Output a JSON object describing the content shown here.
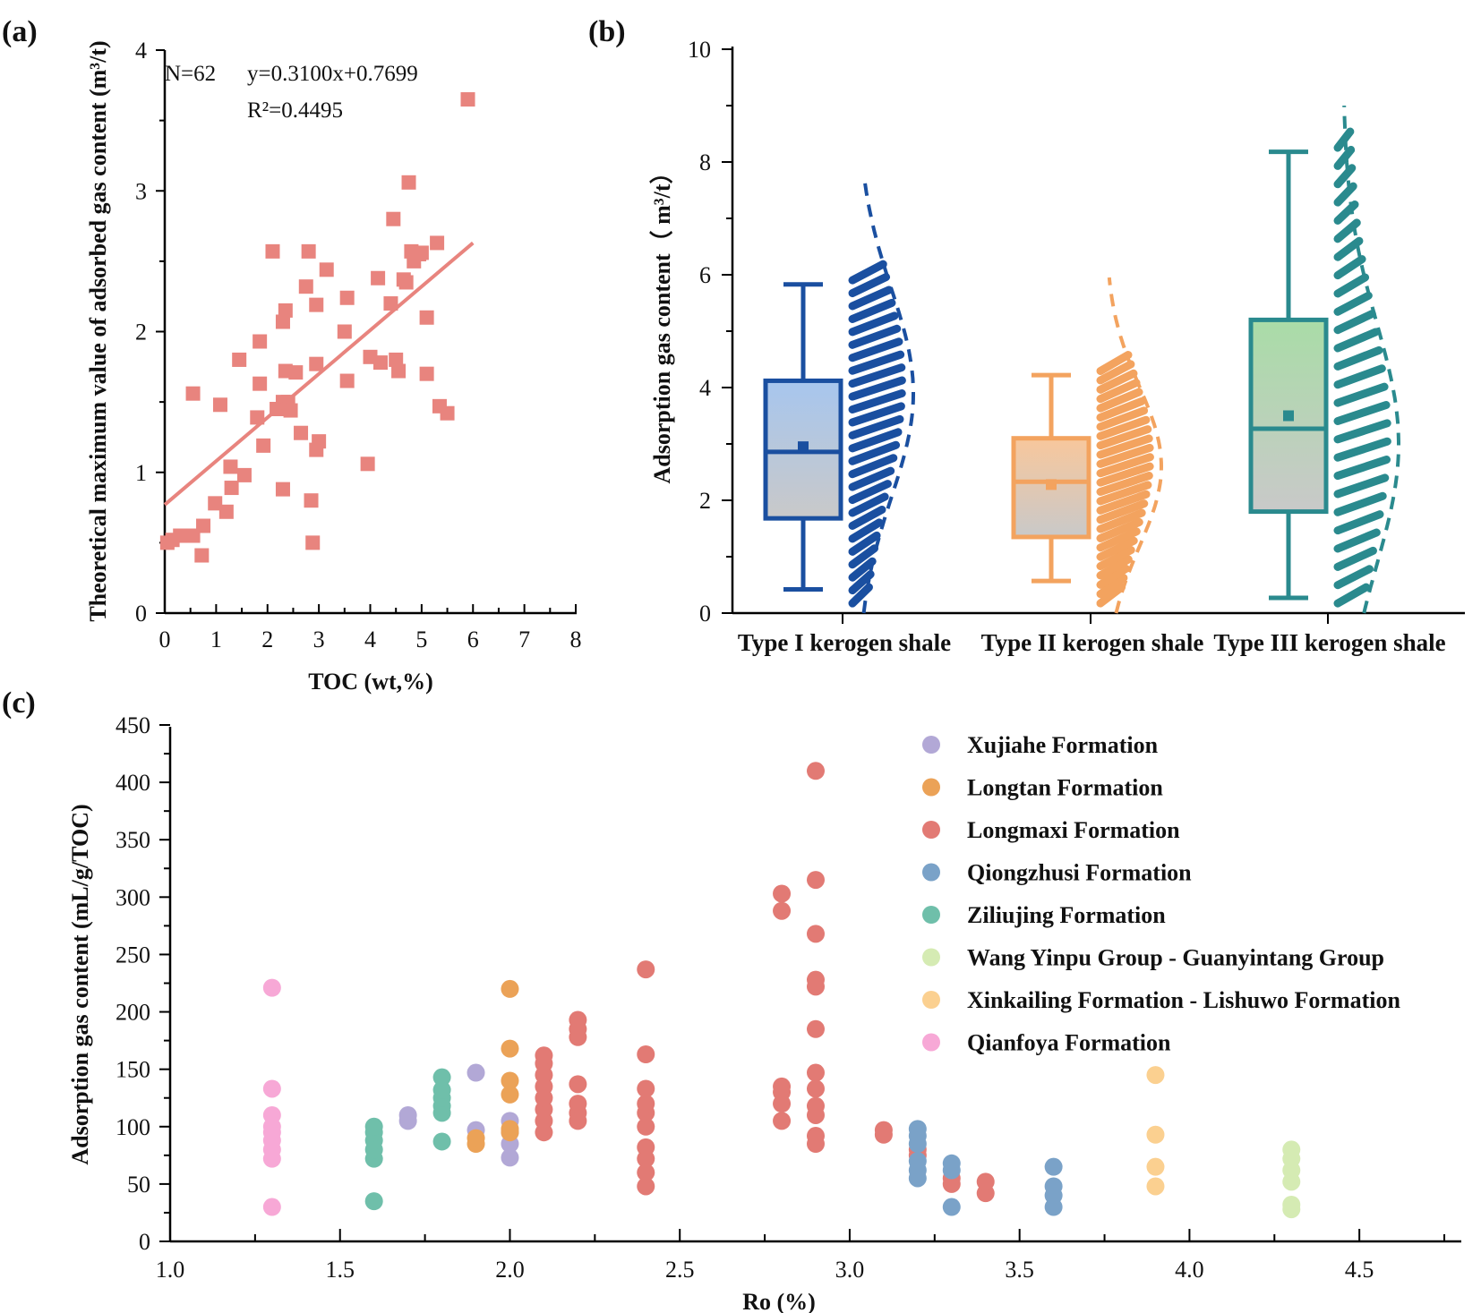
{
  "panels": {
    "a": {
      "label": "(a)"
    },
    "b": {
      "label": "(b)"
    },
    "c": {
      "label": "(c)"
    }
  },
  "chart_data": [
    {
      "id": "a",
      "type": "scatter",
      "xlabel": "TOC (wt,%)",
      "ylabel": "Theoretical maximum value of adsorbed gas content (m³/t)",
      "xlim": [
        0,
        8
      ],
      "ylim": [
        0,
        4
      ],
      "xticks": [
        "0",
        "1",
        "2",
        "3",
        "4",
        "5",
        "6",
        "7",
        "8"
      ],
      "yticks": [
        "0",
        "1",
        "2",
        "3",
        "4"
      ],
      "annotation": {
        "n": "N=62",
        "equation": "y=0.3100x+0.7699",
        "r2": "R²=0.4495"
      },
      "fit": {
        "slope": 0.31,
        "intercept": 0.7699,
        "x_range": [
          0,
          6
        ]
      },
      "color": "#e8847e",
      "points": [
        [
          0.05,
          0.5
        ],
        [
          0.15,
          0.52
        ],
        [
          0.3,
          0.55
        ],
        [
          0.55,
          0.55
        ],
        [
          0.75,
          0.62
        ],
        [
          0.72,
          0.41
        ],
        [
          0.98,
          0.78
        ],
        [
          1.2,
          0.72
        ],
        [
          1.28,
          1.04
        ],
        [
          1.3,
          0.89
        ],
        [
          1.55,
          0.98
        ],
        [
          0.55,
          1.56
        ],
        [
          1.08,
          1.48
        ],
        [
          1.45,
          1.8
        ],
        [
          1.85,
          1.63
        ],
        [
          1.85,
          1.93
        ],
        [
          1.8,
          1.39
        ],
        [
          1.92,
          1.19
        ],
        [
          2.18,
          1.45
        ],
        [
          2.3,
          1.5
        ],
        [
          2.4,
          1.5
        ],
        [
          2.45,
          1.44
        ],
        [
          2.35,
          1.72
        ],
        [
          2.55,
          1.71
        ],
        [
          2.1,
          2.57
        ],
        [
          2.3,
          2.07
        ],
        [
          2.35,
          2.15
        ],
        [
          2.65,
          1.28
        ],
        [
          2.3,
          0.88
        ],
        [
          2.75,
          2.32
        ],
        [
          2.8,
          2.57
        ],
        [
          2.85,
          0.8
        ],
        [
          2.88,
          0.5
        ],
        [
          2.95,
          1.16
        ],
        [
          2.95,
          2.19
        ],
        [
          2.95,
          1.77
        ],
        [
          3.0,
          1.22
        ],
        [
          3.15,
          2.44
        ],
        [
          3.5,
          2.0
        ],
        [
          3.55,
          2.24
        ],
        [
          3.55,
          1.65
        ],
        [
          3.95,
          1.06
        ],
        [
          4.0,
          1.82
        ],
        [
          4.15,
          2.38
        ],
        [
          4.2,
          1.78
        ],
        [
          4.4,
          2.2
        ],
        [
          4.45,
          2.8
        ],
        [
          4.5,
          1.8
        ],
        [
          4.55,
          1.72
        ],
        [
          4.65,
          2.37
        ],
        [
          4.75,
          3.06
        ],
        [
          4.8,
          2.57
        ],
        [
          4.85,
          2.5
        ],
        [
          4.95,
          2.55
        ],
        [
          5.0,
          2.56
        ],
        [
          5.1,
          1.7
        ],
        [
          5.1,
          2.1
        ],
        [
          5.3,
          2.63
        ],
        [
          5.35,
          1.47
        ],
        [
          5.5,
          1.42
        ],
        [
          5.9,
          3.65
        ],
        [
          4.7,
          2.35
        ]
      ]
    },
    {
      "id": "b",
      "type": "box",
      "ylabel": "Adsorption gas content（ m³/t）",
      "ylim": [
        0,
        10
      ],
      "yticks": [
        "0",
        "2",
        "4",
        "6",
        "8",
        "10"
      ],
      "categories": [
        "Type I kerogen shale",
        "Type II kerogen shale",
        "Type III kerogen shale"
      ],
      "series": [
        {
          "name": "Type I kerogen shale",
          "color": "#1a4fa0",
          "fill_top": "#a7c6ee",
          "min": 0.42,
          "q1": 1.68,
          "median": 2.86,
          "q3": 4.12,
          "max": 5.83,
          "mean": 2.95,
          "dist_range": [
            0,
            7.75
          ],
          "dist_peak": 3.9
        },
        {
          "name": "Type II kerogen shale",
          "color": "#f3a35f",
          "fill_top": "#f8c79c",
          "min": 0.57,
          "q1": 1.35,
          "median": 2.33,
          "q3": 3.1,
          "max": 4.22,
          "mean": 2.28,
          "dist_range": [
            0,
            5.95
          ],
          "dist_peak": 2.6
        },
        {
          "name": "Type III kerogen shale",
          "color": "#2a8a8e",
          "fill_top": "#a9dca7",
          "min": 0.27,
          "q1": 1.8,
          "median": 3.27,
          "q3": 5.2,
          "max": 8.18,
          "mean": 3.5,
          "dist_range": [
            0,
            9.0
          ],
          "dist_peak": 3.0
        }
      ]
    },
    {
      "id": "c",
      "type": "scatter",
      "xlabel": "Ro (%)",
      "ylabel": "Adsorption gas content (mL/g/TOC)",
      "xlim": [
        1.0,
        4.8
      ],
      "ylim": [
        0,
        450
      ],
      "xticks": [
        "1.0",
        "1.5",
        "2.0",
        "2.5",
        "3.0",
        "3.5",
        "4.0",
        "4.5"
      ],
      "yticks": [
        "0",
        "50",
        "100",
        "150",
        "200",
        "250",
        "300",
        "350",
        "400",
        "450"
      ],
      "series": [
        {
          "name": "Xujiahe Formation",
          "color": "#b2a8d6",
          "points": [
            [
              1.7,
              105
            ],
            [
              1.7,
              110
            ],
            [
              1.9,
              97
            ],
            [
              1.9,
              147
            ],
            [
              2.0,
              73
            ],
            [
              2.0,
              85
            ],
            [
              2.0,
              95
            ],
            [
              2.0,
              105
            ]
          ]
        },
        {
          "name": "Longtan Formation",
          "color": "#eba257",
          "points": [
            [
              1.9,
              85
            ],
            [
              1.9,
              90
            ],
            [
              2.0,
              95
            ],
            [
              2.0,
              98
            ],
            [
              2.0,
              128
            ],
            [
              2.0,
              140
            ],
            [
              2.0,
              168
            ],
            [
              2.0,
              220
            ]
          ]
        },
        {
          "name": "Longmaxi Formation",
          "color": "#e27a74",
          "points": [
            [
              2.1,
              95
            ],
            [
              2.1,
              105
            ],
            [
              2.1,
              115
            ],
            [
              2.1,
              125
            ],
            [
              2.1,
              135
            ],
            [
              2.1,
              145
            ],
            [
              2.1,
              155
            ],
            [
              2.1,
              162
            ],
            [
              2.2,
              105
            ],
            [
              2.2,
              112
            ],
            [
              2.2,
              120
            ],
            [
              2.2,
              137
            ],
            [
              2.2,
              178
            ],
            [
              2.2,
              185
            ],
            [
              2.2,
              193
            ],
            [
              2.4,
              48
            ],
            [
              2.4,
              60
            ],
            [
              2.4,
              72
            ],
            [
              2.4,
              82
            ],
            [
              2.4,
              100
            ],
            [
              2.4,
              112
            ],
            [
              2.4,
              120
            ],
            [
              2.4,
              133
            ],
            [
              2.4,
              163
            ],
            [
              2.4,
              237
            ],
            [
              2.8,
              105
            ],
            [
              2.8,
              120
            ],
            [
              2.8,
              130
            ],
            [
              2.8,
              135
            ],
            [
              2.8,
              288
            ],
            [
              2.8,
              303
            ],
            [
              2.9,
              85
            ],
            [
              2.9,
              92
            ],
            [
              2.9,
              110
            ],
            [
              2.9,
              118
            ],
            [
              2.9,
              133
            ],
            [
              2.9,
              147
            ],
            [
              2.9,
              185
            ],
            [
              2.9,
              222
            ],
            [
              2.9,
              228
            ],
            [
              2.9,
              268
            ],
            [
              2.9,
              315
            ],
            [
              2.9,
              410
            ],
            [
              3.1,
              93
            ],
            [
              3.1,
              97
            ],
            [
              3.2,
              75
            ],
            [
              3.2,
              80
            ],
            [
              3.3,
              50
            ],
            [
              3.3,
              55
            ],
            [
              3.4,
              42
            ],
            [
              3.4,
              52
            ]
          ]
        },
        {
          "name": "Qiongzhusi Formation",
          "color": "#7aa2c8",
          "points": [
            [
              3.2,
              55
            ],
            [
              3.2,
              62
            ],
            [
              3.2,
              70
            ],
            [
              3.2,
              85
            ],
            [
              3.2,
              92
            ],
            [
              3.2,
              98
            ],
            [
              3.3,
              30
            ],
            [
              3.3,
              62
            ],
            [
              3.3,
              68
            ],
            [
              3.6,
              30
            ],
            [
              3.6,
              40
            ],
            [
              3.6,
              48
            ],
            [
              3.6,
              65
            ]
          ]
        },
        {
          "name": "Ziliujing Formation",
          "color": "#6fbfaa",
          "points": [
            [
              1.6,
              35
            ],
            [
              1.6,
              72
            ],
            [
              1.6,
              80
            ],
            [
              1.6,
              88
            ],
            [
              1.6,
              95
            ],
            [
              1.6,
              100
            ],
            [
              1.8,
              87
            ],
            [
              1.8,
              112
            ],
            [
              1.8,
              118
            ],
            [
              1.8,
              125
            ],
            [
              1.8,
              132
            ],
            [
              1.8,
              143
            ]
          ]
        },
        {
          "name": "Wang Yinpu Group - Guanyintang Group",
          "color": "#d5ebb3",
          "points": [
            [
              4.3,
              28
            ],
            [
              4.3,
              32
            ],
            [
              4.3,
              52
            ],
            [
              4.3,
              62
            ],
            [
              4.3,
              72
            ],
            [
              4.3,
              80
            ]
          ]
        },
        {
          "name": "Xinkailing Formation - Lishuwo Formation",
          "color": "#fbd090",
          "points": [
            [
              3.9,
              48
            ],
            [
              3.9,
              65
            ],
            [
              3.9,
              93
            ],
            [
              3.9,
              145
            ]
          ]
        },
        {
          "name": "Qianfoya Formation",
          "color": "#f7a8d6",
          "points": [
            [
              1.3,
              30
            ],
            [
              1.3,
              72
            ],
            [
              1.3,
              80
            ],
            [
              1.3,
              88
            ],
            [
              1.3,
              95
            ],
            [
              1.3,
              100
            ],
            [
              1.3,
              110
            ],
            [
              1.3,
              133
            ],
            [
              1.3,
              221
            ]
          ]
        }
      ]
    }
  ]
}
